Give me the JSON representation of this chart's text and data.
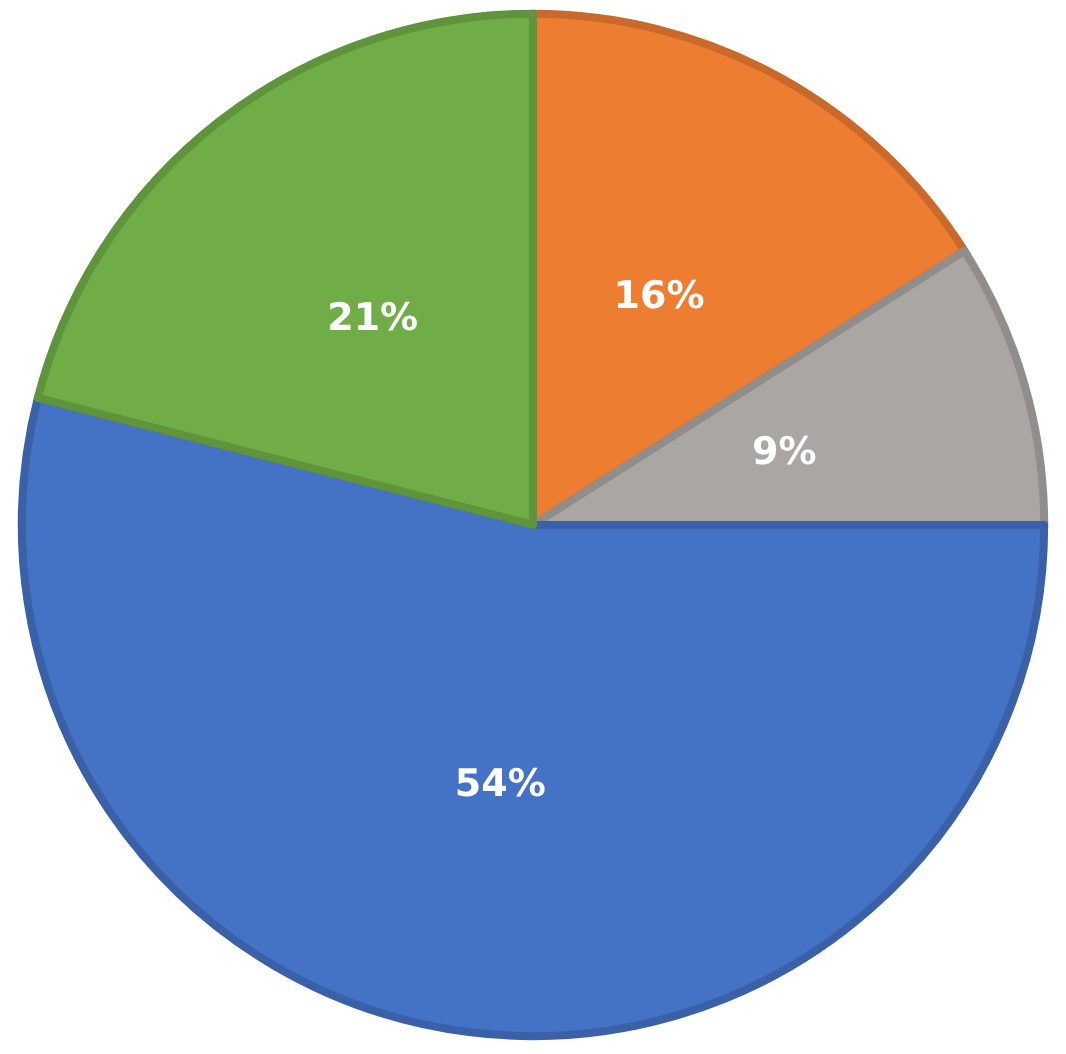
{
  "chart_data": {
    "type": "pie",
    "categories": [
      null,
      null,
      null,
      null
    ],
    "values": [
      16,
      9,
      54,
      21
    ],
    "colors": [
      "#ed7d31",
      "#aaa6a4",
      "#4472c4",
      "#70ad47"
    ],
    "value_labels": [
      "16%",
      "9%",
      "54%",
      "21%"
    ]
  }
}
